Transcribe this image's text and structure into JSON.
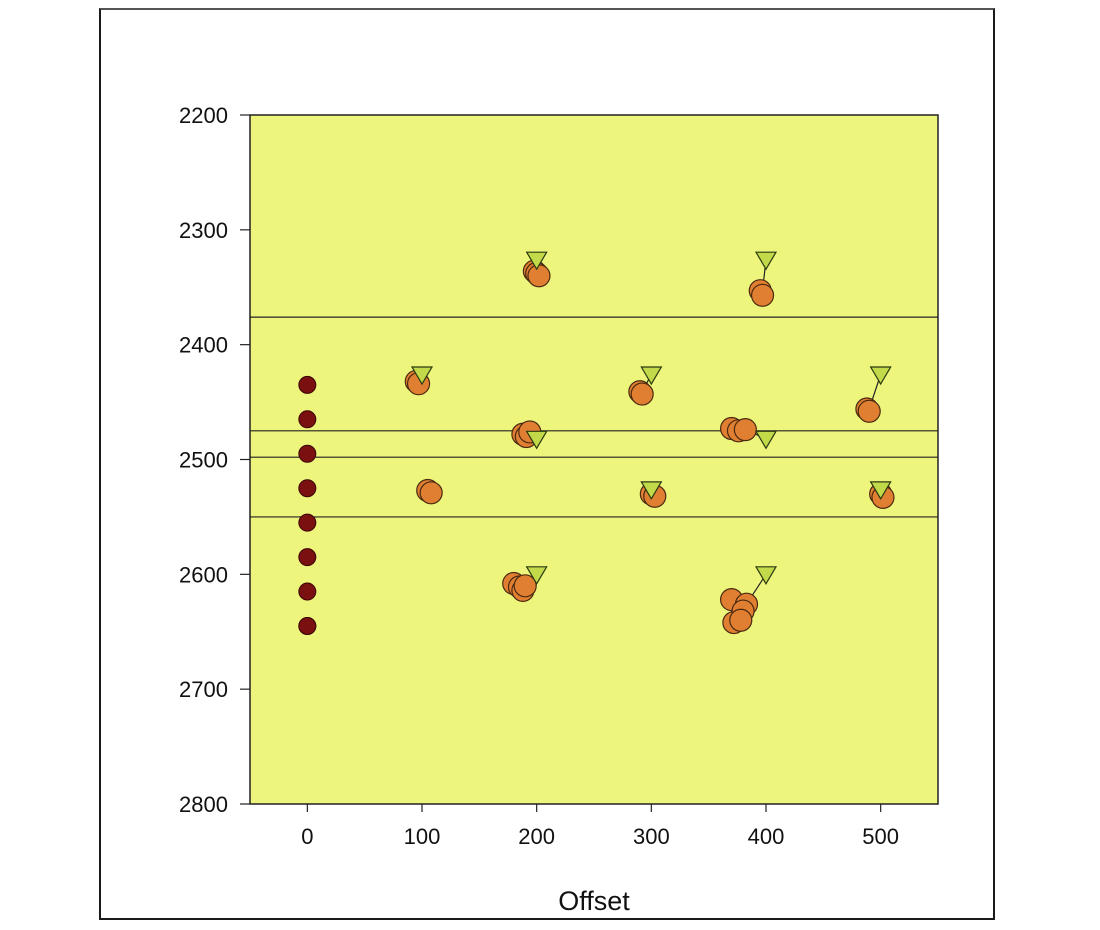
{
  "chart_data": {
    "type": "scatter",
    "title": "",
    "xlabel": "Offset",
    "ylabel": "",
    "xlim": [
      -50,
      550
    ],
    "ylim": [
      2800,
      2200
    ],
    "y_inverted": true,
    "xticks": [
      0,
      100,
      200,
      300,
      400,
      500
    ],
    "yticks": [
      2200,
      2300,
      2400,
      2500,
      2600,
      2700,
      2800
    ],
    "grid": false,
    "legend": "none",
    "colors": {
      "plot_background": "#eef57d",
      "source_points": "#7a1010",
      "measured_points": "#e07f32",
      "model_points": "#c2d94a",
      "lines": "#222222"
    },
    "horizontal_lines": [
      2376,
      2475,
      2498,
      2550
    ],
    "series": [
      {
        "marker": "circle-dark",
        "x": [
          0,
          0,
          0,
          0,
          0,
          0,
          0,
          0,
          0
        ],
        "y": [
          2435,
          2465,
          2495,
          2525,
          2555,
          2585,
          2615,
          2645,
          2645
        ]
      },
      {
        "marker": "circle",
        "x": [
          95,
          97,
          105,
          108,
          188,
          191,
          194,
          198,
          200,
          202,
          180,
          185,
          188,
          190,
          290,
          292,
          300,
          303,
          370,
          376,
          382,
          395,
          397,
          488,
          490,
          500,
          502,
          370,
          376,
          383,
          372,
          380,
          378
        ],
        "y": [
          2432,
          2434,
          2527,
          2529,
          2478,
          2480,
          2476,
          2336,
          2338,
          2340,
          2608,
          2611,
          2614,
          2610,
          2441,
          2443,
          2530,
          2532,
          2473,
          2475,
          2474,
          2353,
          2357,
          2456,
          2458,
          2530,
          2533,
          2622,
          2640,
          2626,
          2642,
          2632,
          2640
        ]
      },
      {
        "marker": "triangle-down",
        "x": [
          100,
          200,
          200,
          200,
          300,
          300,
          400,
          400,
          400,
          500,
          500
        ],
        "y": [
          2426,
          2326,
          2482,
          2600,
          2426,
          2526,
          2326,
          2482,
          2600,
          2426,
          2526
        ]
      }
    ],
    "connectors": [
      [
        [
          95,
          2432
        ],
        [
          100,
          2426
        ]
      ],
      [
        [
          198,
          2336
        ],
        [
          200,
          2326
        ]
      ],
      [
        [
          194,
          2478
        ],
        [
          200,
          2482
        ]
      ],
      [
        [
          190,
          2610
        ],
        [
          200,
          2600
        ]
      ],
      [
        [
          292,
          2441
        ],
        [
          300,
          2426
        ]
      ],
      [
        [
          303,
          2530
        ],
        [
          300,
          2526
        ]
      ],
      [
        [
          397,
          2353
        ],
        [
          400,
          2326
        ]
      ],
      [
        [
          382,
          2474
        ],
        [
          400,
          2482
        ]
      ],
      [
        [
          383,
          2626
        ],
        [
          400,
          2600
        ]
      ],
      [
        [
          490,
          2456
        ],
        [
          500,
          2426
        ]
      ],
      [
        [
          502,
          2530
        ],
        [
          500,
          2526
        ]
      ]
    ]
  }
}
